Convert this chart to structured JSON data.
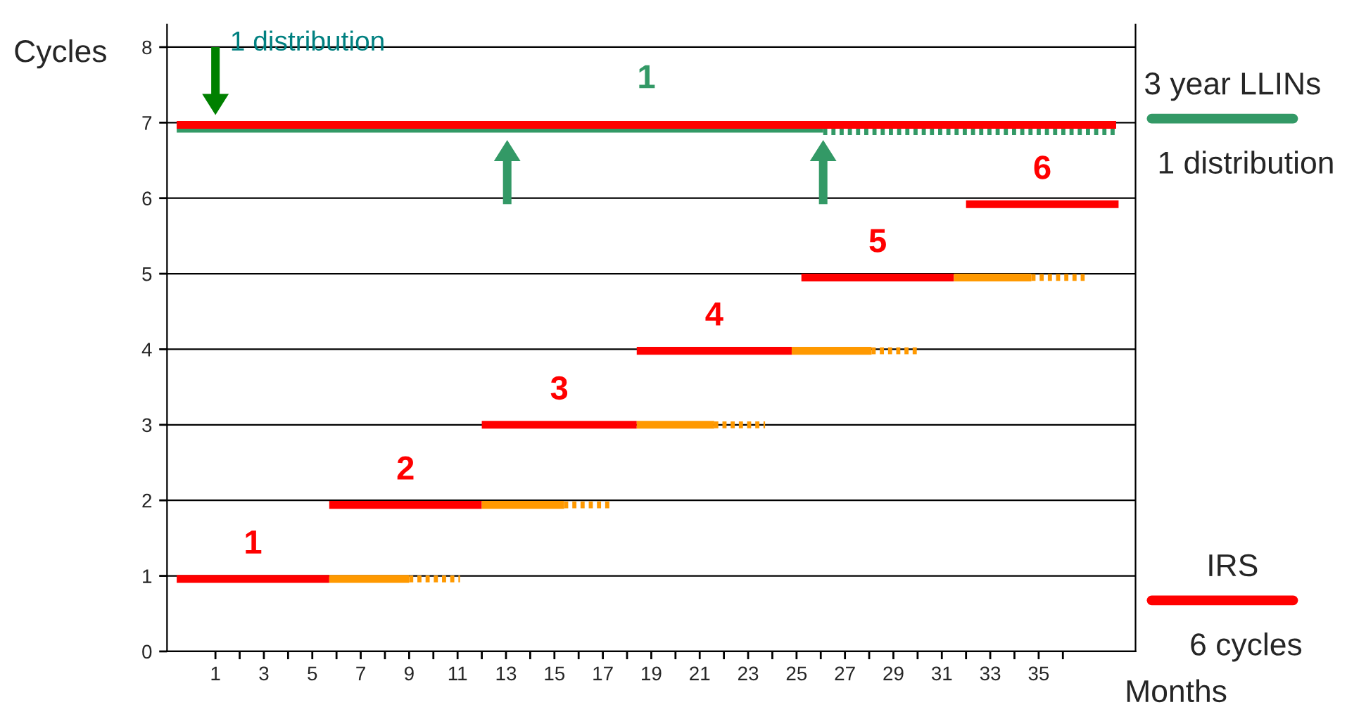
{
  "chart_data": {
    "type": "line",
    "ylabel": "Cycles",
    "xlabel": "Months",
    "xlim": [
      -1,
      39
    ],
    "ylim": [
      0,
      8.3
    ],
    "xticks": [
      1,
      {
        "value": 2,
        "label": null
      },
      3,
      {
        "value": 4,
        "label": null
      },
      5,
      {
        "value": 6,
        "label": null
      },
      7,
      {
        "value": 8,
        "label": null
      },
      9,
      {
        "value": 10,
        "label": null
      },
      11,
      {
        "value": 12,
        "label": null
      },
      13,
      {
        "value": 14,
        "label": null
      },
      15,
      {
        "value": 16,
        "label": null
      },
      17,
      {
        "value": 18,
        "label": null
      },
      19,
      {
        "value": 20,
        "label": null
      },
      21,
      {
        "value": 22,
        "label": null
      },
      23,
      {
        "value": 24,
        "label": null
      },
      25,
      {
        "value": 26,
        "label": null
      },
      27,
      {
        "value": 28,
        "label": null
      },
      29,
      {
        "value": 30,
        "label": null
      },
      31,
      {
        "value": 32,
        "label": null
      },
      33,
      {
        "value": 34,
        "label": null
      },
      35,
      {
        "value": 36,
        "label": null
      }
    ],
    "yticks": [
      0,
      1,
      2,
      3,
      4,
      5,
      6,
      7,
      8
    ],
    "grid": "y",
    "legend": "right",
    "marker": "none",
    "series": [
      {
        "name": "3 year LLINs",
        "color": "#339966",
        "x": [
          -0.6,
          26.1
        ],
        "values": [
          6.92,
          6.92
        ]
      },
      {
        "color": "#339966",
        "x": [
          26.1,
          38.3
        ],
        "values": [
          6.88,
          6.88
        ],
        "line_style": "dotted"
      },
      {
        "color": "#ff0000",
        "x": [
          -0.6,
          38.2
        ],
        "values": [
          6.97,
          6.97
        ]
      },
      {
        "name": "IRS",
        "color": "#ff0000",
        "x": [
          -0.6,
          5.7
        ],
        "values": [
          0.96,
          0.96
        ]
      },
      {
        "color": "#ff9900",
        "x": [
          5.7,
          9.0
        ],
        "values": [
          0.96,
          0.96
        ]
      },
      {
        "color": "#ff9900",
        "x": [
          9.0,
          11.1
        ],
        "values": [
          0.96,
          0.96
        ],
        "line_style": "dotted"
      },
      {
        "color": "#ff0000",
        "x": [
          5.7,
          12.0
        ],
        "values": [
          1.94,
          1.94
        ]
      },
      {
        "color": "#ff9900",
        "x": [
          12.0,
          15.4
        ],
        "values": [
          1.94,
          1.94
        ]
      },
      {
        "color": "#ff9900",
        "x": [
          15.4,
          17.4
        ],
        "values": [
          1.94,
          1.94
        ],
        "line_style": "dotted"
      },
      {
        "color": "#ff0000",
        "x": [
          12.0,
          18.4
        ],
        "values": [
          3.0,
          3.0
        ]
      },
      {
        "color": "#ff9900",
        "x": [
          18.4,
          21.6
        ],
        "values": [
          3.0,
          3.0
        ]
      },
      {
        "color": "#ff9900",
        "x": [
          21.6,
          23.7
        ],
        "values": [
          3.0,
          3.0
        ],
        "line_style": "dotted"
      },
      {
        "color": "#ff0000",
        "x": [
          18.4,
          24.8
        ],
        "values": [
          3.98,
          3.98
        ]
      },
      {
        "color": "#ff9900",
        "x": [
          24.8,
          28.1
        ],
        "values": [
          3.98,
          3.98
        ]
      },
      {
        "color": "#ff9900",
        "x": [
          28.1,
          30.1
        ],
        "values": [
          3.98,
          3.98
        ],
        "line_style": "dotted"
      },
      {
        "color": "#ff0000",
        "x": [
          25.2,
          31.5
        ],
        "values": [
          4.95,
          4.95
        ]
      },
      {
        "color": "#ff9900",
        "x": [
          31.5,
          34.7
        ],
        "values": [
          4.95,
          4.95
        ]
      },
      {
        "color": "#ff9900",
        "x": [
          34.7,
          36.9
        ],
        "values": [
          4.95,
          4.95
        ],
        "line_style": "dotted"
      },
      {
        "color": "#ff0000",
        "x": [
          32.0,
          38.3
        ],
        "values": [
          5.92,
          5.92
        ]
      }
    ],
    "annotations": [
      {
        "text": "1 distribution",
        "x": 1,
        "y": 7.1
      },
      "1",
      "1",
      "2",
      "3",
      "4",
      "5",
      "6",
      "1 distribution",
      "6 cycles"
    ]
  }
}
